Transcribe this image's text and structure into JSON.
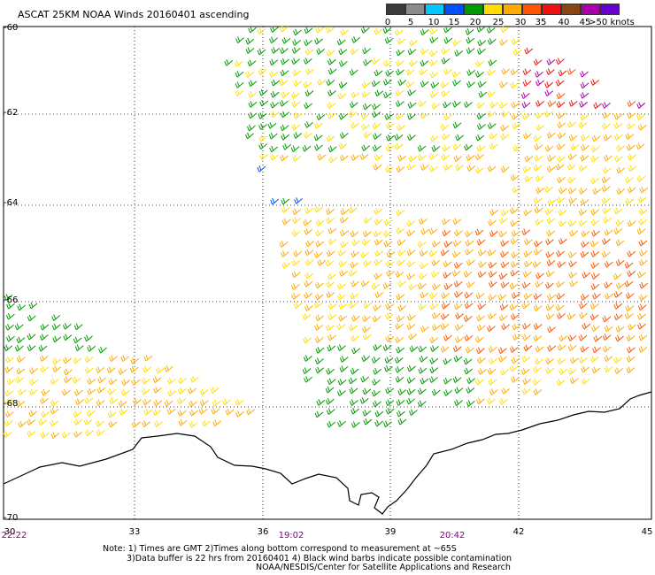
{
  "title": "ASCAT 25KM NOAA Winds 20160401 ascending",
  "colorbar": {
    "labels": [
      "0",
      "5",
      "10",
      "15",
      "20",
      "25",
      "30",
      "35",
      "40",
      "45",
      ">50 knots"
    ],
    "colors": [
      "#3a3a3a",
      "#8c8c8c",
      "#00c8ff",
      "#0050ff",
      "#009900",
      "#ffdd00",
      "#ffaa00",
      "#ff5500",
      "#ee1111",
      "#8b4513",
      "#aa00aa",
      "#6600cc"
    ]
  },
  "map": {
    "lat_labels": [
      "-60",
      "-62",
      "-64",
      "-66",
      "-68",
      "-70"
    ],
    "lon_labels": [
      "30",
      "33",
      "36",
      "39",
      "42",
      "45"
    ],
    "time_labels": [
      "22:22",
      "19:02",
      "20:42"
    ]
  },
  "notes": [
    "Note: 1) Times are GMT 2)Times along bottom correspond to measurement at ~65S",
    "3)Data buffer is 22 hrs from 20160401 4) Black wind barbs indicate possible contamination",
    "NOAA/NESDIS/Center for Satellite Applications and Research"
  ]
}
